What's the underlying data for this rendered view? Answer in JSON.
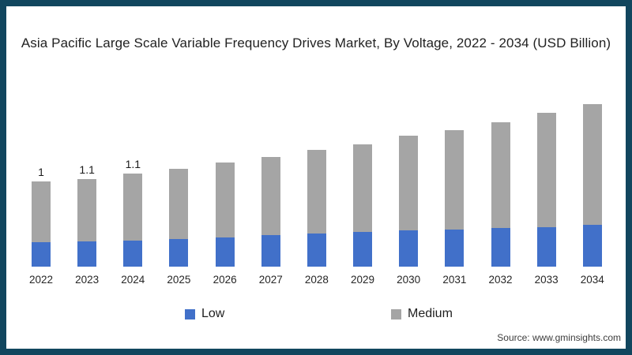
{
  "page": {
    "border_color": "#11465e",
    "background_color": "#ffffff"
  },
  "title": "Asia Pacific Large Scale Variable Frequency Drives Market, By Voltage, 2022 - 2034 (USD Billion)",
  "chart_data": {
    "type": "bar",
    "subtype": "stacked-vertical",
    "categories": [
      "2022",
      "2023",
      "2024",
      "2025",
      "2026",
      "2027",
      "2028",
      "2029",
      "2030",
      "2031",
      "2032",
      "2033",
      "2034"
    ],
    "series": [
      {
        "name": "Low",
        "color": "#4170c9",
        "values": [
          0.29,
          0.3,
          0.31,
          0.33,
          0.35,
          0.37,
          0.39,
          0.41,
          0.43,
          0.44,
          0.46,
          0.47,
          0.5
        ]
      },
      {
        "name": "Medium",
        "color": "#a5a5a5",
        "values": [
          0.72,
          0.74,
          0.79,
          0.83,
          0.88,
          0.93,
          0.99,
          1.04,
          1.12,
          1.18,
          1.25,
          1.35,
          1.43
        ]
      }
    ],
    "totals": [
      1.01,
      1.04,
      1.1,
      1.16,
      1.23,
      1.3,
      1.38,
      1.45,
      1.55,
      1.62,
      1.71,
      1.82,
      1.93
    ],
    "data_labels": [
      "1",
      "1.1",
      "1.1",
      "",
      "",
      "",
      "",
      "",
      "",
      "",
      "",
      "",
      ""
    ],
    "title": "Asia Pacific Large Scale Variable Frequency Drives Market, By Voltage, 2022 - 2034 (USD Billion)",
    "xlabel": "",
    "ylabel": "",
    "ylim": [
      0,
      2.1
    ],
    "grid": false,
    "axis_lines": false,
    "legend_position": "bottom"
  },
  "legend": {
    "items": [
      {
        "label": "Low",
        "color": "#4170c9"
      },
      {
        "label": "Medium",
        "color": "#a5a5a5"
      }
    ]
  },
  "source": "Source: www.gminsights.com"
}
